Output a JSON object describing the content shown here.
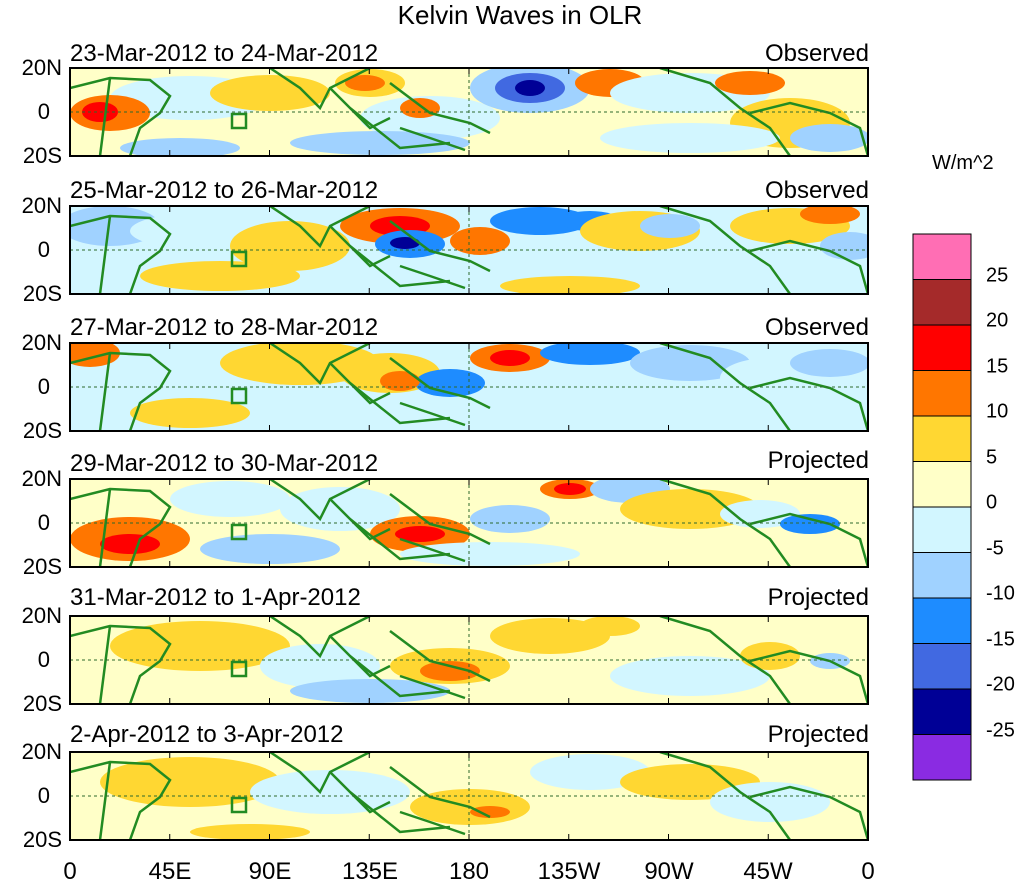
{
  "title": "Kelvin Waves in OLR",
  "units": "W/m^2",
  "latitude_labels": [
    "20N",
    "0",
    "20S"
  ],
  "longitude_labels": [
    "0",
    "45E",
    "90E",
    "135E",
    "180",
    "135W",
    "90W",
    "45W",
    "0"
  ],
  "panels": [
    {
      "date_range": "23-Mar-2012 to 24-Mar-2012",
      "status": "Observed"
    },
    {
      "date_range": "25-Mar-2012 to 26-Mar-2012",
      "status": "Observed"
    },
    {
      "date_range": "27-Mar-2012 to 28-Mar-2012",
      "status": "Observed"
    },
    {
      "date_range": "29-Mar-2012 to 30-Mar-2012",
      "status": "Projected"
    },
    {
      "date_range": "31-Mar-2012 to 1-Apr-2012",
      "status": "Projected"
    },
    {
      "date_range": "2-Apr-2012 to 3-Apr-2012",
      "status": "Projected"
    }
  ],
  "colorbar": {
    "labels": [
      "25",
      "20",
      "15",
      "10",
      "5",
      "0",
      "-5",
      "-10",
      "-15",
      "-20",
      "-25"
    ],
    "colors": [
      "#ff6eb4",
      "#a52a2a",
      "#ff0000",
      "#ff7600",
      "#ffd732",
      "#ffffc8",
      "#d2f6ff",
      "#a0d2ff",
      "#1e8cff",
      "#4169e1",
      "#000096",
      "#8a2be2"
    ]
  },
  "land_color": "#228b22",
  "anomaly_colors": {
    "t5": "#ffd732",
    "t0": "#ffffc8",
    "tm5": "#d2f6ff",
    "tm10": "#a0d2ff",
    "t10": "#ff7600",
    "t15": "#ff0000",
    "tm15": "#1e8cff",
    "tm20": "#4169e1",
    "tm25": "#000096"
  }
}
